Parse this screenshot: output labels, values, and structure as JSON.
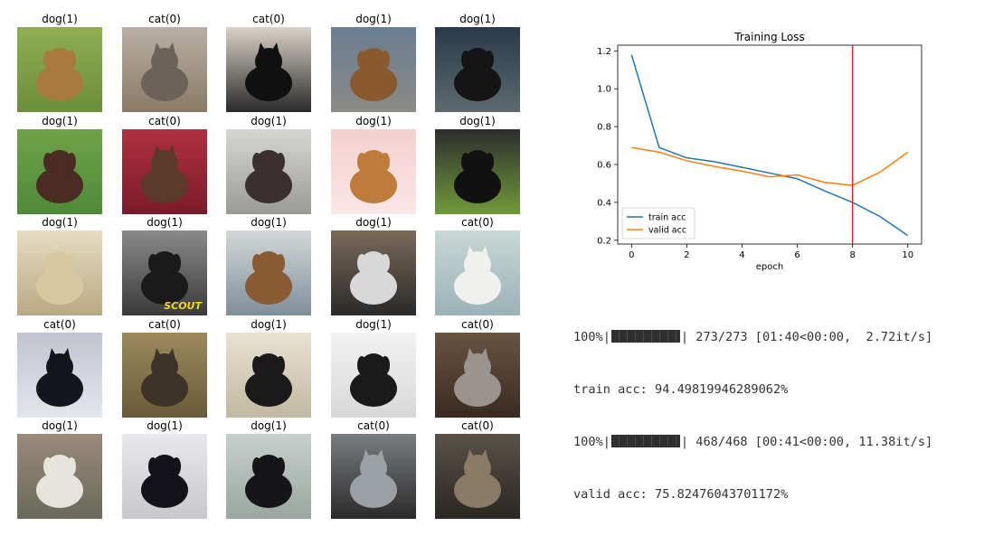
{
  "grid": {
    "labels": [
      [
        "dog(1)",
        "cat(0)",
        "cat(0)",
        "dog(1)",
        "dog(1)"
      ],
      [
        "dog(1)",
        "cat(0)",
        "dog(1)",
        "dog(1)",
        "dog(1)"
      ],
      [
        "dog(1)",
        "dog(1)",
        "dog(1)",
        "dog(1)",
        "cat(0)"
      ],
      [
        "cat(0)",
        "cat(0)",
        "dog(1)",
        "dog(1)",
        "cat(0)"
      ],
      [
        "dog(1)",
        "dog(1)",
        "dog(1)",
        "cat(0)",
        "cat(0)"
      ]
    ],
    "images": [
      [
        "tan dog standing on grass",
        "grey tabby cat raising paw",
        "black cat lying on cushion",
        "beagle on leash held by person",
        "man holding black dog"
      ],
      [
        "brown dog on lawn",
        "dark dog with person",
        "dark cat in cage",
        "cartoon kitten drawing",
        "black curly-haired dog"
      ],
      [
        "husky dog smiling",
        "black dog lying down",
        "brown puppy looking up",
        "kittens in box",
        "cats near tire"
      ],
      [
        "black fluffy dog",
        "tabby cat in cage",
        "black and white puppy sitting",
        "black and white puppy face",
        "tabby and white cat sitting"
      ],
      [
        "bulldog indoors",
        "black puppy with blue collar",
        "black puppy sitting",
        "grey cat",
        "tabby cat on blanket"
      ]
    ],
    "photo_texts": [
      [
        "",
        "",
        "",
        "",
        ""
      ],
      [
        "",
        "",
        "",
        "",
        ""
      ],
      [
        "",
        "SCOUT",
        "",
        "",
        ""
      ],
      [
        "",
        "",
        "",
        "",
        ""
      ],
      [
        "",
        "",
        "",
        "",
        ""
      ]
    ]
  },
  "chart_data": {
    "type": "line",
    "title": "Training Loss",
    "xlabel": "epoch",
    "ylabel": "",
    "x": [
      0,
      1,
      2,
      3,
      4,
      5,
      6,
      7,
      8,
      9,
      10
    ],
    "xlim": [
      -0.5,
      10.5
    ],
    "ylim": [
      0.18,
      1.23
    ],
    "xticks": [
      0,
      2,
      4,
      6,
      8,
      10
    ],
    "yticks": [
      0.2,
      0.4,
      0.6,
      0.8,
      1.0,
      1.2
    ],
    "ytick_labels": [
      "0.2",
      "0.4",
      "0.6",
      "0.8",
      "1.0",
      "1.2"
    ],
    "series": [
      {
        "name": "train acc",
        "color": "#1f77b4",
        "values": [
          1.18,
          0.69,
          0.635,
          0.615,
          0.585,
          0.555,
          0.525,
          0.46,
          0.4,
          0.325,
          0.225
        ]
      },
      {
        "name": "valid acc",
        "color": "#ff7f0e",
        "values": [
          0.69,
          0.665,
          0.62,
          0.59,
          0.565,
          0.535,
          0.545,
          0.505,
          0.49,
          0.56,
          0.665
        ]
      }
    ],
    "vline": {
      "x": 8,
      "color": "#e8261c"
    },
    "legend": "lower-left",
    "grid": false
  },
  "console": {
    "line1_prefix": "100%|",
    "line1_suffix": "| 273/273 [01:40<00:00,  2.72it/s]",
    "line2": "train acc: 94.49819946289062%",
    "line3_prefix": "100%|",
    "line3_suffix": "| 468/468 [00:41<00:00, 11.38it/s]",
    "line4": "valid acc: 75.82476043701172%",
    "progress_train": 1.0,
    "progress_valid": 1.0
  }
}
